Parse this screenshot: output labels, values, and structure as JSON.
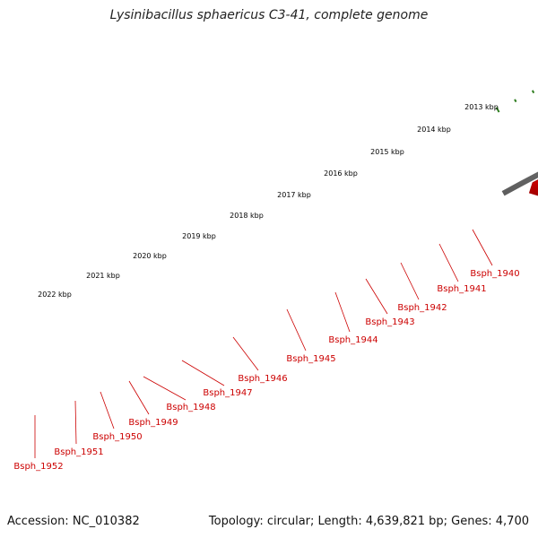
{
  "title": "Lysinibacillus sphaericus C3-41, complete genome",
  "footer": {
    "accession": "Accession: NC_010382",
    "topology": "Topology: circular; Length: 4,639,821 bp; Genes: 4,700"
  },
  "colors": {
    "gene": "#e60000",
    "gene_dark": "#a30000",
    "pseudo_gene": "#b8b8b8",
    "backbone": "#808080",
    "ruler": "#2e7d1f",
    "label": "#cc0000"
  },
  "ruler_labels": [
    "2013 kbp",
    "2014 kbp",
    "2015 kbp",
    "2016 kbp",
    "2017 kbp",
    "2018 kbp",
    "2019 kbp",
    "2020 kbp",
    "2021 kbp",
    "2022 kbp"
  ],
  "gene_labels": [
    "Bsph_1940",
    "Bsph_1941",
    "Bsph_1942",
    "Bsph_1943",
    "Bsph_1944",
    "Bsph_1945",
    "Bsph_1946",
    "Bsph_1947",
    "Bsph_1948",
    "Bsph_1949",
    "Bsph_1950",
    "Bsph_1951",
    "Bsph_1952"
  ]
}
